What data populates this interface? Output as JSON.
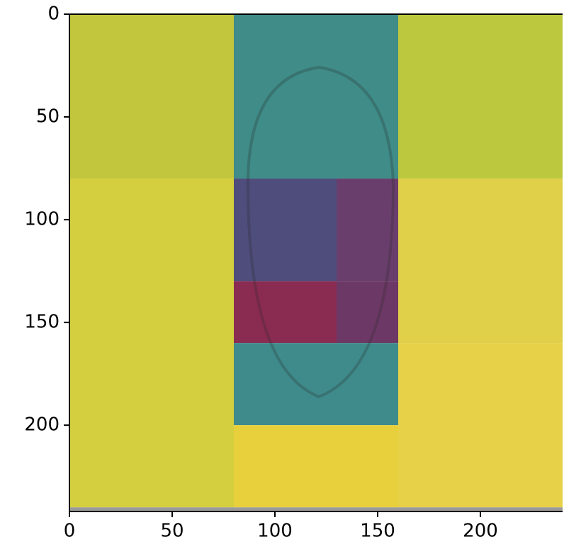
{
  "chart_data": {
    "type": "heatmap",
    "regions": [
      {
        "x": [
          0,
          80
        ],
        "y": [
          0,
          80
        ],
        "color": "#c2c63c"
      },
      {
        "x": [
          80,
          160
        ],
        "y": [
          0,
          80
        ],
        "color": "#3f8c89"
      },
      {
        "x": [
          160,
          240
        ],
        "y": [
          0,
          80
        ],
        "color": "#bcc83e"
      },
      {
        "x": [
          0,
          80
        ],
        "y": [
          80,
          240
        ],
        "color": "#d4cf3e"
      },
      {
        "x": [
          80,
          130
        ],
        "y": [
          80,
          130
        ],
        "color": "#4f4d7c"
      },
      {
        "x": [
          130,
          160
        ],
        "y": [
          80,
          130
        ],
        "color": "#6a3e6c"
      },
      {
        "x": [
          80,
          130
        ],
        "y": [
          130,
          160
        ],
        "color": "#8a2b52"
      },
      {
        "x": [
          130,
          160
        ],
        "y": [
          130,
          160
        ],
        "color": "#6c3866"
      },
      {
        "x": [
          80,
          160
        ],
        "y": [
          160,
          200
        ],
        "color": "#3f8b8b"
      },
      {
        "x": [
          160,
          240
        ],
        "y": [
          80,
          160
        ],
        "color": "#e0cf48"
      },
      {
        "x": [
          160,
          240
        ],
        "y": [
          160,
          240
        ],
        "color": "#e6d148"
      },
      {
        "x": [
          80,
          160
        ],
        "y": [
          200,
          240
        ],
        "color": "#e8d03c"
      },
      {
        "x": [
          0,
          240
        ],
        "y": [
          240,
          242
        ],
        "color": "#9a9a9a"
      }
    ],
    "xlim": [
      0,
      240
    ],
    "ylim": [
      242,
      0
    ],
    "xticks": [
      0,
      50,
      100,
      150,
      200
    ],
    "yticks": [
      0,
      50,
      100,
      150,
      200
    ]
  }
}
